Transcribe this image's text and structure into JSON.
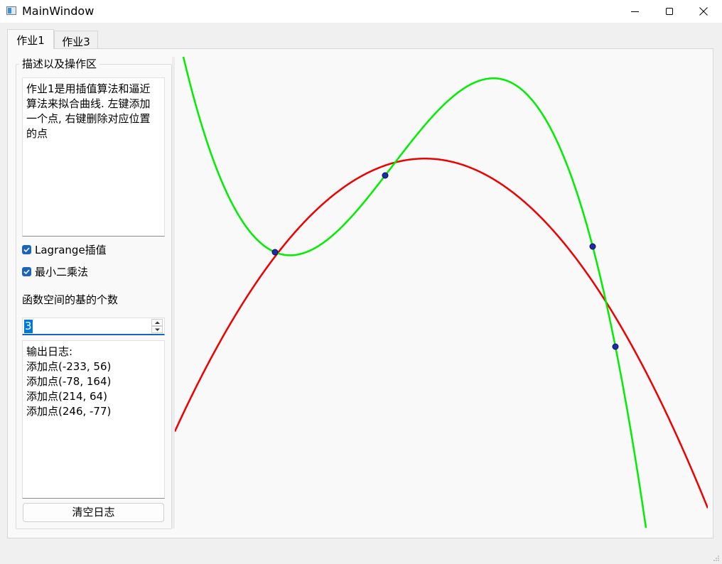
{
  "window": {
    "title": "MainWindow",
    "controls": [
      "minimize",
      "maximize",
      "close"
    ]
  },
  "tabs": [
    {
      "label": "作业1",
      "active": true
    },
    {
      "label": "作业3",
      "active": false
    }
  ],
  "panel": {
    "group_title": "描述以及操作区",
    "description": "作业1是用插值算法和逼近算法来拟合曲线. 左键添加一个点, 右键删除对应位置的点",
    "checkboxes": [
      {
        "label": "Lagrange插值",
        "checked": true
      },
      {
        "label": "最小二乘法",
        "checked": true
      }
    ],
    "basis_label": "函数空间的基的个数",
    "basis_count": "3",
    "log_lines": [
      "输出日志:",
      "添加点(-233, 56)",
      "添加点(-78, 164)",
      "添加点(214, 64)",
      "添加点(246, -77)"
    ],
    "clear_button": "清空日志"
  },
  "colors": {
    "lagrange_curve": "#00ee00",
    "least_squares_curve": "#ee0000",
    "point_fill": "#1a2ea8",
    "accent": "#1a64c0"
  },
  "chart_data": {
    "type": "line",
    "title": "",
    "xlabel": "",
    "ylabel": "",
    "points": [
      {
        "x": -233,
        "y": 56
      },
      {
        "x": -78,
        "y": 164
      },
      {
        "x": 214,
        "y": 64
      },
      {
        "x": 246,
        "y": -77
      }
    ],
    "series": [
      {
        "curve": "lagrange_interpolation",
        "color": "#00ee00"
      },
      {
        "curve": "least_squares_degree_2",
        "color": "#ee0000"
      }
    ]
  }
}
